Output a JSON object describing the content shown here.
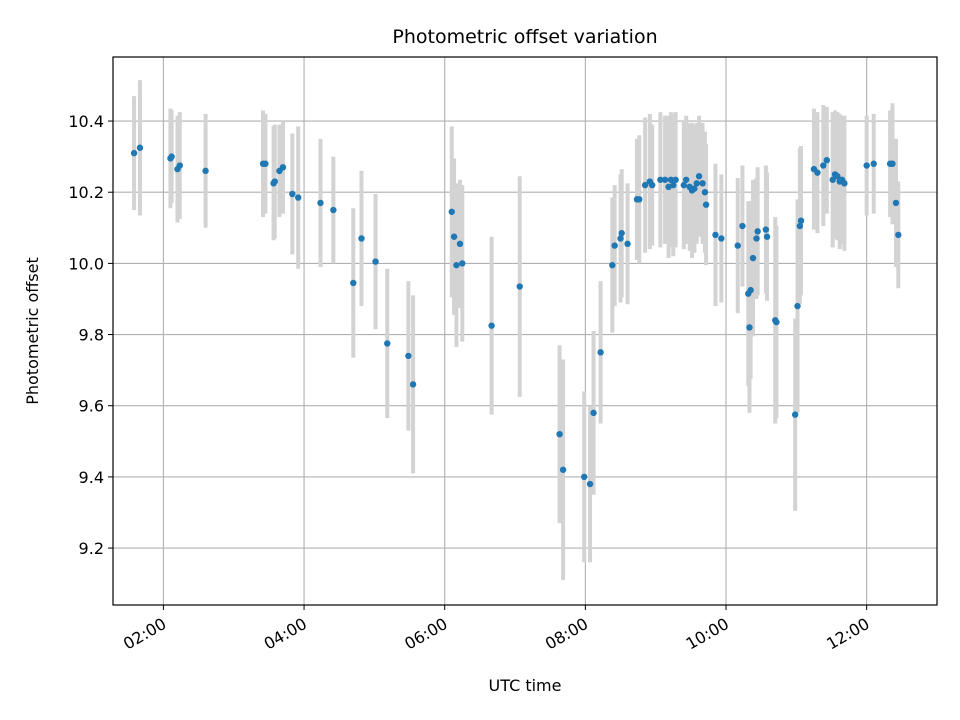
{
  "chart_data": {
    "type": "scatter",
    "title": "Photometric offset variation",
    "xlabel": "UTC time",
    "ylabel": "Photometric offset",
    "x_unit": "UTC time (HH:MM)",
    "xlim": [
      "01:17",
      "13:00"
    ],
    "ylim": [
      9.04,
      10.58
    ],
    "x_ticks": [
      "02:00",
      "04:00",
      "06:00",
      "08:00",
      "10:00",
      "12:00"
    ],
    "y_ticks": [
      "9.2",
      "9.4",
      "9.6",
      "9.8",
      "10.0",
      "10.2",
      "10.4"
    ],
    "grid": true,
    "marker_color": "#1f77b4",
    "errorbar_color": "#d3d3d3",
    "points": [
      {
        "x": "01:35",
        "y": 10.31,
        "err": 0.16
      },
      {
        "x": "01:40",
        "y": 10.325,
        "err": 0.19
      },
      {
        "x": "02:06",
        "y": 10.295,
        "err": 0.14
      },
      {
        "x": "02:07",
        "y": 10.3,
        "err": 0.13
      },
      {
        "x": "02:12",
        "y": 10.265,
        "err": 0.15
      },
      {
        "x": "02:14",
        "y": 10.275,
        "err": 0.15
      },
      {
        "x": "02:36",
        "y": 10.26,
        "err": 0.16
      },
      {
        "x": "03:25",
        "y": 10.28,
        "err": 0.15
      },
      {
        "x": "03:27",
        "y": 10.28,
        "err": 0.14
      },
      {
        "x": "03:34",
        "y": 10.225,
        "err": 0.16
      },
      {
        "x": "03:35",
        "y": 10.23,
        "err": 0.16
      },
      {
        "x": "03:39",
        "y": 10.26,
        "err": 0.13
      },
      {
        "x": "03:42",
        "y": 10.27,
        "err": 0.13
      },
      {
        "x": "03:50",
        "y": 10.195,
        "err": 0.17
      },
      {
        "x": "03:55",
        "y": 10.185,
        "err": 0.2
      },
      {
        "x": "04:14",
        "y": 10.17,
        "err": 0.18
      },
      {
        "x": "04:25",
        "y": 10.15,
        "err": 0.15
      },
      {
        "x": "04:42",
        "y": 9.945,
        "err": 0.21
      },
      {
        "x": "04:49",
        "y": 10.07,
        "err": 0.19
      },
      {
        "x": "05:01",
        "y": 10.005,
        "err": 0.19
      },
      {
        "x": "05:11",
        "y": 9.775,
        "err": 0.21
      },
      {
        "x": "05:29",
        "y": 9.74,
        "err": 0.21
      },
      {
        "x": "05:33",
        "y": 9.66,
        "err": 0.25
      },
      {
        "x": "06:06",
        "y": 10.145,
        "err": 0.24
      },
      {
        "x": "06:08",
        "y": 10.075,
        "err": 0.22
      },
      {
        "x": "06:10",
        "y": 9.995,
        "err": 0.23
      },
      {
        "x": "06:13",
        "y": 10.055,
        "err": 0.18
      },
      {
        "x": "06:15",
        "y": 10.0,
        "err": 0.22
      },
      {
        "x": "06:40",
        "y": 9.825,
        "err": 0.25
      },
      {
        "x": "07:04",
        "y": 9.935,
        "err": 0.31
      },
      {
        "x": "07:38",
        "y": 9.52,
        "err": 0.25
      },
      {
        "x": "07:41",
        "y": 9.42,
        "err": 0.31
      },
      {
        "x": "07:59",
        "y": 9.4,
        "err": 0.24
      },
      {
        "x": "08:04",
        "y": 9.38,
        "err": 0.22
      },
      {
        "x": "08:07",
        "y": 9.58,
        "err": 0.23
      },
      {
        "x": "08:13",
        "y": 9.75,
        "err": 0.2
      },
      {
        "x": "08:23",
        "y": 9.995,
        "err": 0.19
      },
      {
        "x": "08:25",
        "y": 10.05,
        "err": 0.17
      },
      {
        "x": "08:30",
        "y": 10.07,
        "err": 0.18
      },
      {
        "x": "08:31",
        "y": 10.085,
        "err": 0.18
      },
      {
        "x": "08:36",
        "y": 10.055,
        "err": 0.17
      },
      {
        "x": "08:44",
        "y": 10.18,
        "err": 0.17
      },
      {
        "x": "08:46",
        "y": 10.18,
        "err": 0.18
      },
      {
        "x": "08:51",
        "y": 10.22,
        "err": 0.19
      },
      {
        "x": "08:55",
        "y": 10.23,
        "err": 0.19
      },
      {
        "x": "08:57",
        "y": 10.22,
        "err": 0.17
      },
      {
        "x": "09:04",
        "y": 10.235,
        "err": 0.19
      },
      {
        "x": "09:08",
        "y": 10.235,
        "err": 0.18
      },
      {
        "x": "09:11",
        "y": 10.215,
        "err": 0.2
      },
      {
        "x": "09:13",
        "y": 10.235,
        "err": 0.19
      },
      {
        "x": "09:15",
        "y": 10.22,
        "err": 0.2
      },
      {
        "x": "09:17",
        "y": 10.235,
        "err": 0.19
      },
      {
        "x": "09:24",
        "y": 10.22,
        "err": 0.18
      },
      {
        "x": "09:26",
        "y": 10.235,
        "err": 0.18
      },
      {
        "x": "09:29",
        "y": 10.215,
        "err": 0.18
      },
      {
        "x": "09:31",
        "y": 10.205,
        "err": 0.19
      },
      {
        "x": "09:33",
        "y": 10.21,
        "err": 0.18
      },
      {
        "x": "09:35",
        "y": 10.225,
        "err": 0.17
      },
      {
        "x": "09:37",
        "y": 10.245,
        "err": 0.17
      },
      {
        "x": "09:40",
        "y": 10.225,
        "err": 0.17
      },
      {
        "x": "09:42",
        "y": 10.2,
        "err": 0.17
      },
      {
        "x": "09:43",
        "y": 10.165,
        "err": 0.17
      },
      {
        "x": "09:51",
        "y": 10.08,
        "err": 0.2
      },
      {
        "x": "09:56",
        "y": 10.07,
        "err": 0.18
      },
      {
        "x": "10:10",
        "y": 10.05,
        "err": 0.19
      },
      {
        "x": "10:14",
        "y": 10.105,
        "err": 0.17
      },
      {
        "x": "10:19",
        "y": 9.915,
        "err": 0.26
      },
      {
        "x": "10:20",
        "y": 9.82,
        "err": 0.24
      },
      {
        "x": "10:21",
        "y": 9.925,
        "err": 0.25
      },
      {
        "x": "10:23",
        "y": 10.015,
        "err": 0.22
      },
      {
        "x": "10:26",
        "y": 10.07,
        "err": 0.17
      },
      {
        "x": "10:27",
        "y": 10.09,
        "err": 0.18
      },
      {
        "x": "10:34",
        "y": 10.095,
        "err": 0.18
      },
      {
        "x": "10:35",
        "y": 10.075,
        "err": 0.18
      },
      {
        "x": "10:42",
        "y": 9.84,
        "err": 0.29
      },
      {
        "x": "10:43",
        "y": 9.835,
        "err": 0.27
      },
      {
        "x": "10:59",
        "y": 9.575,
        "err": 0.27
      },
      {
        "x": "11:01",
        "y": 9.88,
        "err": 0.3
      },
      {
        "x": "11:03",
        "y": 10.105,
        "err": 0.22
      },
      {
        "x": "11:04",
        "y": 10.12,
        "err": 0.21
      },
      {
        "x": "11:15",
        "y": 10.265,
        "err": 0.17
      },
      {
        "x": "11:18",
        "y": 10.255,
        "err": 0.17
      },
      {
        "x": "11:23",
        "y": 10.275,
        "err": 0.17
      },
      {
        "x": "11:26",
        "y": 10.29,
        "err": 0.15
      },
      {
        "x": "11:31",
        "y": 10.235,
        "err": 0.19
      },
      {
        "x": "11:33",
        "y": 10.25,
        "err": 0.18
      },
      {
        "x": "11:35",
        "y": 10.245,
        "err": 0.18
      },
      {
        "x": "11:37",
        "y": 10.23,
        "err": 0.19
      },
      {
        "x": "11:39",
        "y": 10.235,
        "err": 0.18
      },
      {
        "x": "11:41",
        "y": 10.225,
        "err": 0.19
      },
      {
        "x": "12:00",
        "y": 10.275,
        "err": 0.14
      },
      {
        "x": "12:06",
        "y": 10.28,
        "err": 0.14
      },
      {
        "x": "12:20",
        "y": 10.28,
        "err": 0.15
      },
      {
        "x": "12:22",
        "y": 10.28,
        "err": 0.17
      },
      {
        "x": "12:25",
        "y": 10.17,
        "err": 0.18
      },
      {
        "x": "12:27",
        "y": 10.08,
        "err": 0.15
      }
    ]
  }
}
